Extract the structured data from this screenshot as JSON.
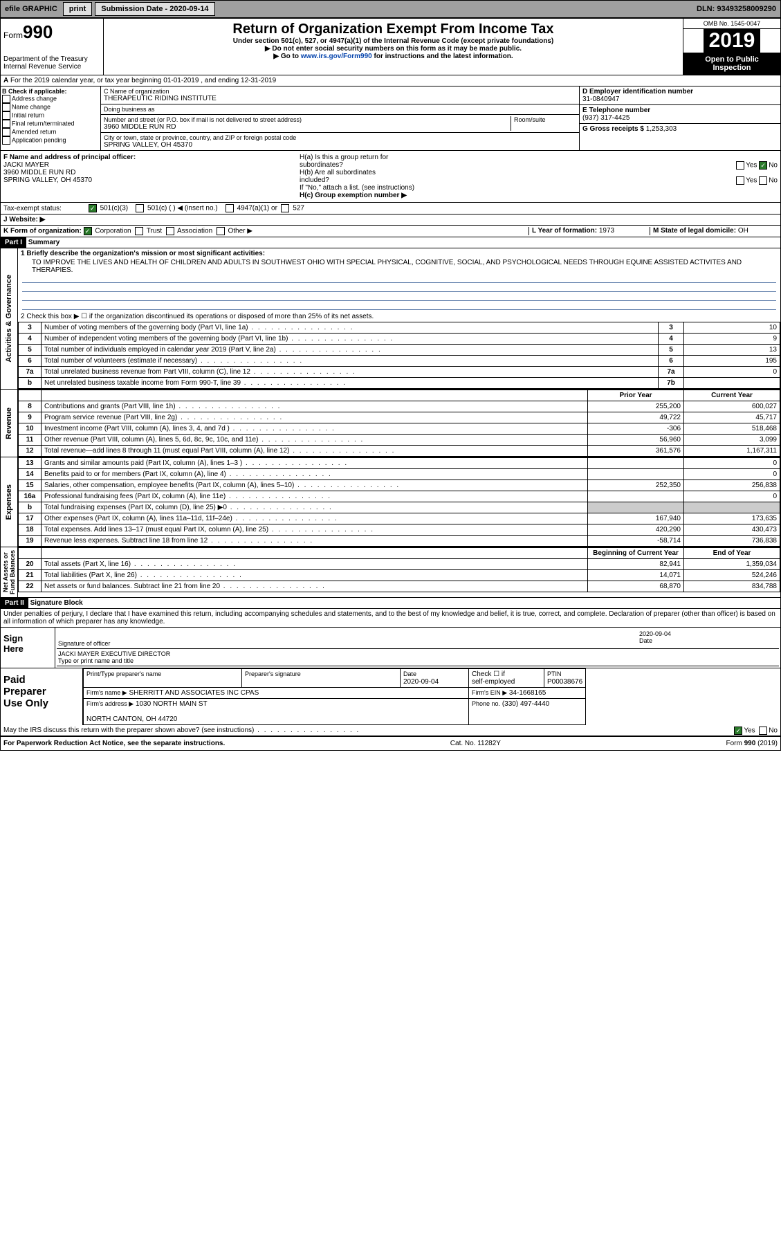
{
  "topbar": {
    "efile": "efile GRAPHIC",
    "print": "print",
    "subdate_lbl": "Submission Date - ",
    "subdate": "2020-09-14",
    "dln": "DLN: 93493258009290"
  },
  "hdr": {
    "form": "Form",
    "f990": "990",
    "dept": "Department of the Treasury\nInternal Revenue Service",
    "title": "Return of Organization Exempt From Income Tax",
    "sub1": "Under section 501(c), 527, or 4947(a)(1) of the Internal Revenue Code (except private foundations)",
    "sub2": "▶ Do not enter social security numbers on this form as it may be made public.",
    "sub3a": "▶ Go to ",
    "sub3link": "www.irs.gov/Form990",
    "sub3b": " for instructions and the latest information.",
    "omb": "OMB No. 1545-0047",
    "year": "2019",
    "opub": "Open to Public\nInspection"
  },
  "a": "For the 2019 calendar year, or tax year beginning 01-01-2019   , and ending 12-31-2019",
  "b": {
    "hdr": "B Check if applicable:",
    "opts": [
      "Address change",
      "Name change",
      "Initial return",
      "Final return/terminated",
      "Amended return",
      "Application pending"
    ]
  },
  "c": {
    "name_lbl": "C Name of organization",
    "name": "THERAPEUTIC RIDING INSTITUTE",
    "dba_lbl": "Doing business as",
    "dba": "",
    "addr_lbl": "Number and street (or P.O. box if mail is not delivered to street address)",
    "room_lbl": "Room/suite",
    "addr": "3960 MIDDLE RUN RD",
    "city_lbl": "City or town, state or province, country, and ZIP or foreign postal code",
    "city": "SPRING VALLEY, OH  45370"
  },
  "d": {
    "lbl": "D Employer identification number",
    "val": "31-0840947"
  },
  "e": {
    "lbl": "E Telephone number",
    "val": "(937) 317-4425"
  },
  "g": {
    "lbl": "G Gross receipts $",
    "val": "1,253,303"
  },
  "f": {
    "lbl": "F  Name and address of principal officer:",
    "name": "JACKI MAYER",
    "addr": "3960 MIDDLE RUN RD\nSPRING VALLEY, OH  45370"
  },
  "h": {
    "a": "H(a)  Is this a group return for\n        subordinates?",
    "b": "H(b)  Are all subordinates\n        included?",
    "note": "If \"No,\" attach a list. (see instructions)",
    "c": "H(c)  Group exemption number ▶",
    "yes": "Yes",
    "no": "No"
  },
  "tax": {
    "lbl": "Tax-exempt status:",
    "o1": "501(c)(3)",
    "o2": "501(c) (  ) ◀ (insert no.)",
    "o3": "4947(a)(1) or",
    "o4": "527"
  },
  "j": {
    "lbl": "J   Website: ▶",
    "val": ""
  },
  "k": {
    "lbl": "K Form of organization:",
    "o1": "Corporation",
    "o2": "Trust",
    "o3": "Association",
    "o4": "Other ▶"
  },
  "l": {
    "lbl": "L Year of formation:",
    "val": "1973"
  },
  "m": {
    "lbl": "M State of legal domicile:",
    "val": "OH"
  },
  "p1": {
    "part": "Part I",
    "title": "Summary"
  },
  "ag": {
    "l1": "1   Briefly describe the organization's mission or most significant activities:",
    "mission": "TO IMPROVE THE LIVES AND HEALTH OF CHILDREN AND ADULTS IN SOUTHWEST OHIO WITH SPECIAL PHYSICAL, COGNITIVE, SOCIAL, AND PSYCHOLOGICAL NEEDS THROUGH EQUINE ASSISTED ACTIVITES AND THERAPIES.",
    "l2": "2    Check this box ▶ ☐  if the organization discontinued its operations or disposed of more than 25% of its net assets.",
    "rows": [
      {
        "n": "3",
        "t": "Number of voting members of the governing body (Part VI, line 1a)",
        "b": "3",
        "v": "10"
      },
      {
        "n": "4",
        "t": "Number of independent voting members of the governing body (Part VI, line 1b)",
        "b": "4",
        "v": "9"
      },
      {
        "n": "5",
        "t": "Total number of individuals employed in calendar year 2019 (Part V, line 2a)",
        "b": "5",
        "v": "13"
      },
      {
        "n": "6",
        "t": "Total number of volunteers (estimate if necessary)",
        "b": "6",
        "v": "195"
      },
      {
        "n": "7a",
        "t": "Total unrelated business revenue from Part VIII, column (C), line 12",
        "b": "7a",
        "v": "0"
      },
      {
        "n": "b",
        "t": "Net unrelated business taxable income from Form 990-T, line 39",
        "b": "7b",
        "v": ""
      }
    ]
  },
  "rev": {
    "hdr": {
      "py": "Prior Year",
      "cy": "Current Year"
    },
    "rows": [
      {
        "n": "8",
        "t": "Contributions and grants (Part VIII, line 1h)",
        "py": "255,200",
        "cy": "600,027"
      },
      {
        "n": "9",
        "t": "Program service revenue (Part VIII, line 2g)",
        "py": "49,722",
        "cy": "45,717"
      },
      {
        "n": "10",
        "t": "Investment income (Part VIII, column (A), lines 3, 4, and 7d )",
        "py": "-306",
        "cy": "518,468"
      },
      {
        "n": "11",
        "t": "Other revenue (Part VIII, column (A), lines 5, 6d, 8c, 9c, 10c, and 11e)",
        "py": "56,960",
        "cy": "3,099"
      },
      {
        "n": "12",
        "t": "Total revenue—add lines 8 through 11 (must equal Part VIII, column (A), line 12)",
        "py": "361,576",
        "cy": "1,167,311"
      }
    ]
  },
  "exp": {
    "rows": [
      {
        "n": "13",
        "t": "Grants and similar amounts paid (Part IX, column (A), lines 1–3 )",
        "py": "",
        "cy": "0"
      },
      {
        "n": "14",
        "t": "Benefits paid to or for members (Part IX, column (A), line 4)",
        "py": "",
        "cy": "0"
      },
      {
        "n": "15",
        "t": "Salaries, other compensation, employee benefits (Part IX, column (A), lines 5–10)",
        "py": "252,350",
        "cy": "256,838"
      },
      {
        "n": "16a",
        "t": "Professional fundraising fees (Part IX, column (A), line 11e)",
        "py": "",
        "cy": "0"
      },
      {
        "n": "b",
        "t": "Total fundraising expenses (Part IX, column (D), line 25) ▶0",
        "py": "g",
        "cy": "g"
      },
      {
        "n": "17",
        "t": "Other expenses (Part IX, column (A), lines 11a–11d, 11f–24e)",
        "py": "167,940",
        "cy": "173,635"
      },
      {
        "n": "18",
        "t": "Total expenses. Add lines 13–17 (must equal Part IX, column (A), line 25)",
        "py": "420,290",
        "cy": "430,473"
      },
      {
        "n": "19",
        "t": "Revenue less expenses. Subtract line 18 from line 12",
        "py": "-58,714",
        "cy": "736,838"
      }
    ]
  },
  "na": {
    "hdr": {
      "b": "Beginning of Current Year",
      "e": "End of Year"
    },
    "rows": [
      {
        "n": "20",
        "t": "Total assets (Part X, line 16)",
        "py": "82,941",
        "cy": "1,359,034"
      },
      {
        "n": "21",
        "t": "Total liabilities (Part X, line 26)",
        "py": "14,071",
        "cy": "524,246"
      },
      {
        "n": "22",
        "t": "Net assets or fund balances. Subtract line 21 from line 20",
        "py": "68,870",
        "cy": "834,788"
      }
    ]
  },
  "side": {
    "ag": "Activities & Governance",
    "rev": "Revenue",
    "exp": "Expenses",
    "na": "Net Assets or\nFund Balances"
  },
  "p2": {
    "part": "Part II",
    "title": "Signature Block",
    "decl": "Under penalties of perjury, I declare that I have examined this return, including accompanying schedules and statements, and to the best of my knowledge and belief, it is true, correct, and complete. Declaration of preparer (other than officer) is based on all information of which preparer has any knowledge."
  },
  "sign": {
    "here": "Sign\nHere",
    "sig": "Signature of officer",
    "date_lbl": "Date",
    "date": "2020-09-04",
    "name": "JACKI MAYER  EXECUTIVE DIRECTOR",
    "type": "Type or print name and title"
  },
  "paid": {
    "lbl": "Paid\nPreparer\nUse Only",
    "h1": "Print/Type preparer's name",
    "h2": "Preparer's signature",
    "h3": "Date",
    "h3v": "2020-09-04",
    "h4": "Check ☐ if\nself-employed",
    "h5": "PTIN",
    "h5v": "P00038676",
    "firm_lbl": "Firm's name   ▶",
    "firm": "SHERRITT AND ASSOCIATES INC CPAS",
    "ein_lbl": "Firm's EIN ▶",
    "ein": "34-1668165",
    "addr_lbl": "Firm's address ▶",
    "addr": "1030 NORTH MAIN ST\n\nNORTH CANTON, OH  44720",
    "phone_lbl": "Phone no.",
    "phone": "(330) 497-4440",
    "discuss": "May the IRS discuss this return with the preparer shown above? (see instructions)",
    "yes": "Yes",
    "no": "No"
  },
  "foot": {
    "l": "For Paperwork Reduction Act Notice, see the separate instructions.",
    "c": "Cat. No. 11282Y",
    "r": "Form 990 (2019)"
  }
}
